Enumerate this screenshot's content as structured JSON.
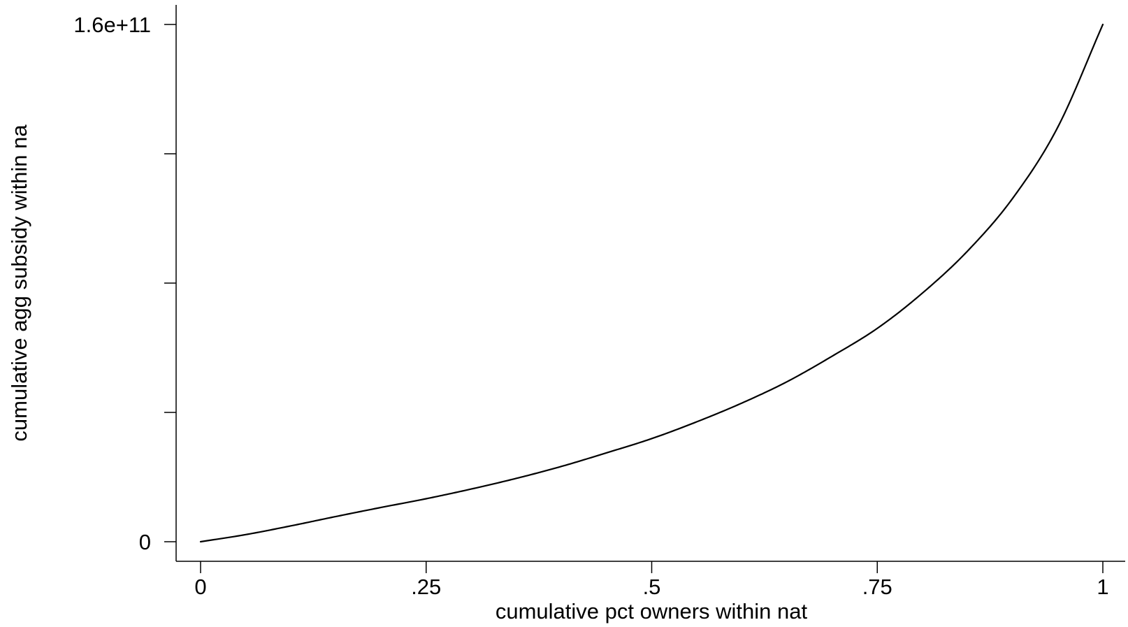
{
  "chart_data": {
    "type": "line",
    "title": "",
    "xlabel": "cumulative pct owners within nat",
    "ylabel": "cumulative agg subsidy within na",
    "xlim": [
      0,
      1
    ],
    "ylim": [
      0,
      160000000000
    ],
    "x_ticks": [
      {
        "value": 0,
        "label": "0"
      },
      {
        "value": 0.25,
        "label": ".25"
      },
      {
        "value": 0.5,
        "label": ".5"
      },
      {
        "value": 0.75,
        "label": ".75"
      },
      {
        "value": 1,
        "label": "1"
      }
    ],
    "y_ticks": [
      {
        "value": 0,
        "label": "0"
      },
      {
        "value": 40000000000,
        "label": ""
      },
      {
        "value": 80000000000,
        "label": ""
      },
      {
        "value": 120000000000,
        "label": ""
      },
      {
        "value": 160000000000,
        "label": "1.6e+11"
      }
    ],
    "grid": false,
    "legend": "none",
    "line_color": "#000000",
    "series": [
      {
        "x": [
          0,
          0.05,
          0.1,
          0.15,
          0.2,
          0.25,
          0.3,
          0.35,
          0.4,
          0.45,
          0.5,
          0.55,
          0.6,
          0.65,
          0.7,
          0.75,
          0.8,
          0.85,
          0.9,
          0.95,
          1.0
        ],
        "values": [
          0,
          2200000000,
          4900000000,
          7800000000,
          10600000000,
          13300000000,
          16300000000,
          19600000000,
          23300000000,
          27500000000,
          31900000000,
          37100000000,
          42900000000,
          49500000000,
          57400000000,
          66000000000,
          76900000000,
          89900000000,
          106200000000,
          128200000000,
          160000000000
        ]
      }
    ]
  }
}
